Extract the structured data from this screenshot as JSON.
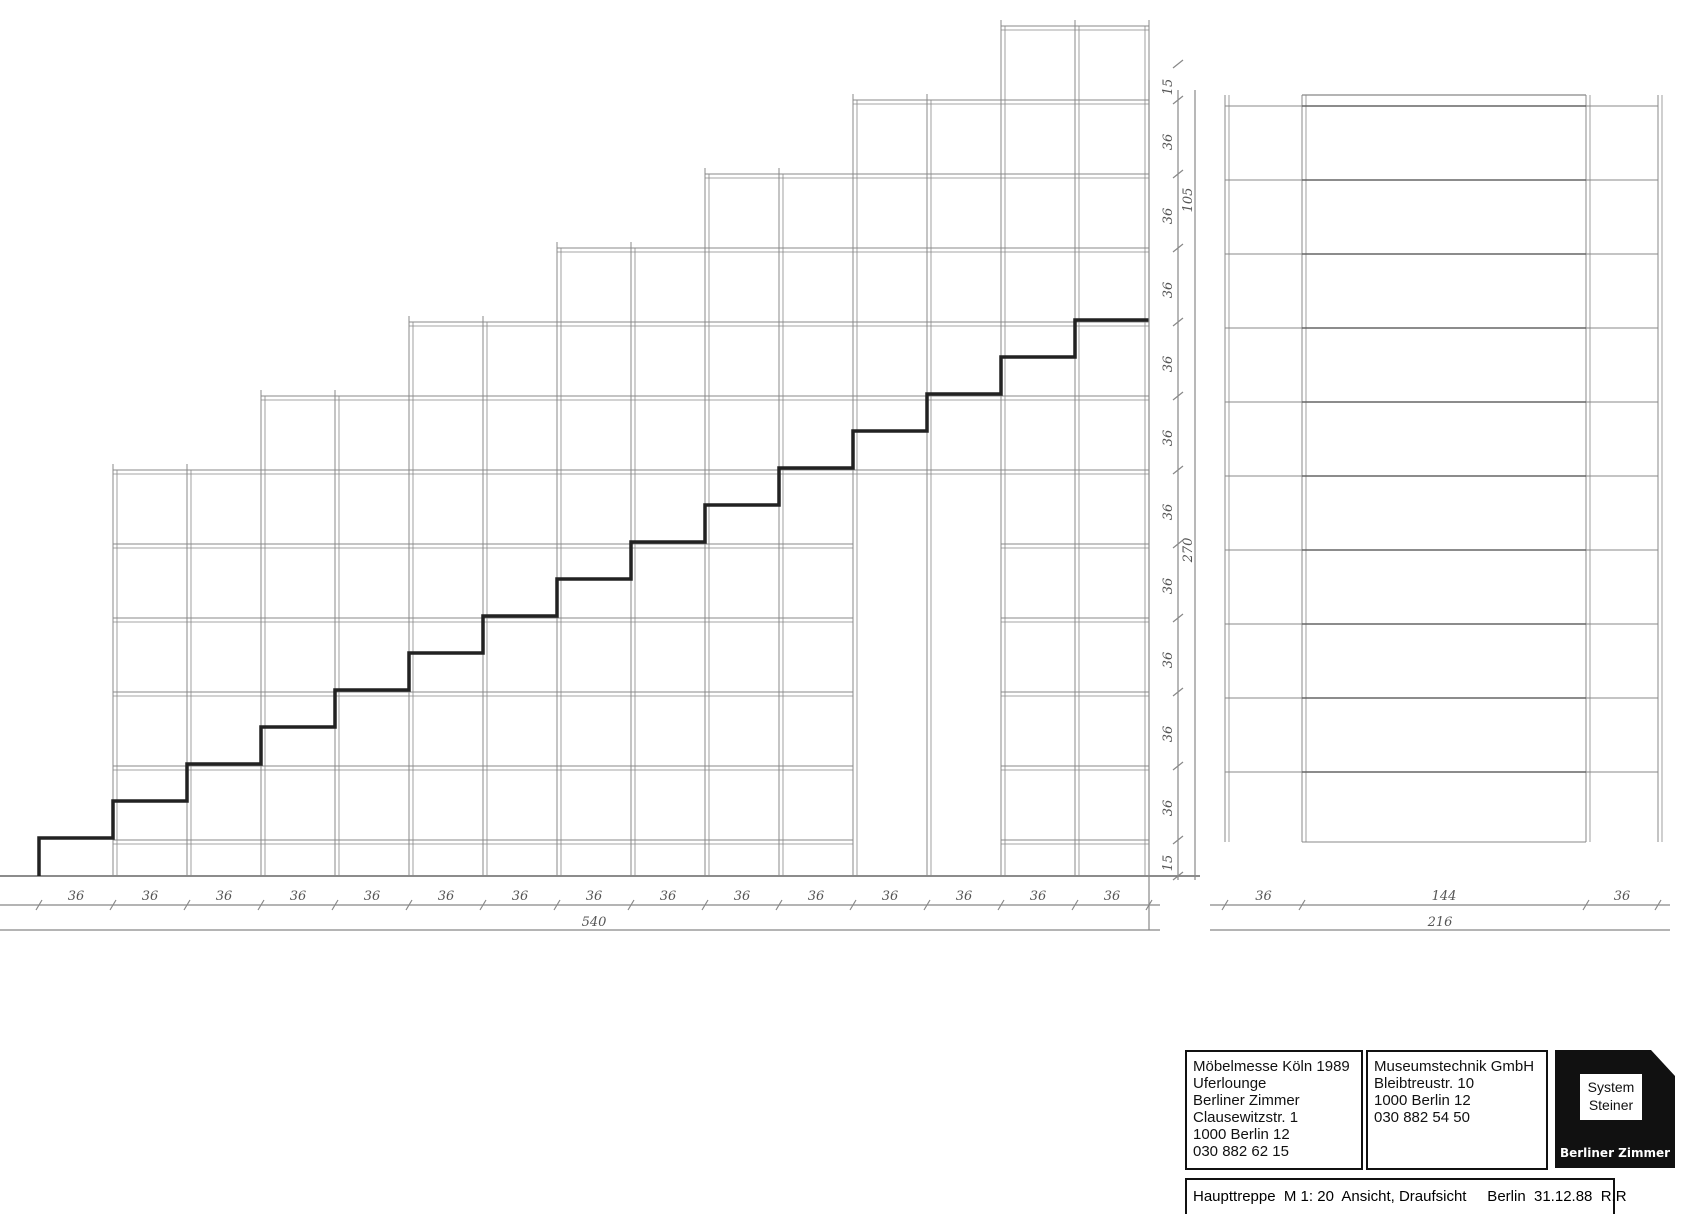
{
  "drawing": {
    "elevation": {
      "bottom_dimensions": [
        "36",
        "36",
        "36",
        "36",
        "36",
        "36",
        "36",
        "36",
        "36",
        "36",
        "36",
        "36",
        "36",
        "36",
        "36"
      ],
      "bottom_total": "540",
      "side_dimensions": [
        "15",
        "36",
        "36",
        "36",
        "36",
        "36",
        "36",
        "36",
        "36",
        "36",
        "36",
        "15"
      ],
      "side_total_lower": "270",
      "side_total_upper": "105"
    },
    "plan": {
      "bottom_dimensions": [
        "36",
        "144",
        "36"
      ],
      "bottom_total": "216"
    }
  },
  "title_block": {
    "client": [
      "Möbelmesse Köln 1989",
      "Uferlounge",
      "Berliner Zimmer",
      "Clausewitzstr. 1",
      "1000 Berlin 12",
      "030 882 62 15"
    ],
    "contractor": [
      "Museumstechnik GmbH",
      "Bleibtreustr. 10",
      "1000 Berlin 12",
      "030 882 54 50"
    ],
    "logo_top": "System",
    "logo_bottom": "Steiner",
    "logo_brand": "Berliner Zimmer",
    "caption": "Haupttreppe  M 1: 20  Ansicht, Draufsicht     Berlin  31.12.88  R.R"
  }
}
